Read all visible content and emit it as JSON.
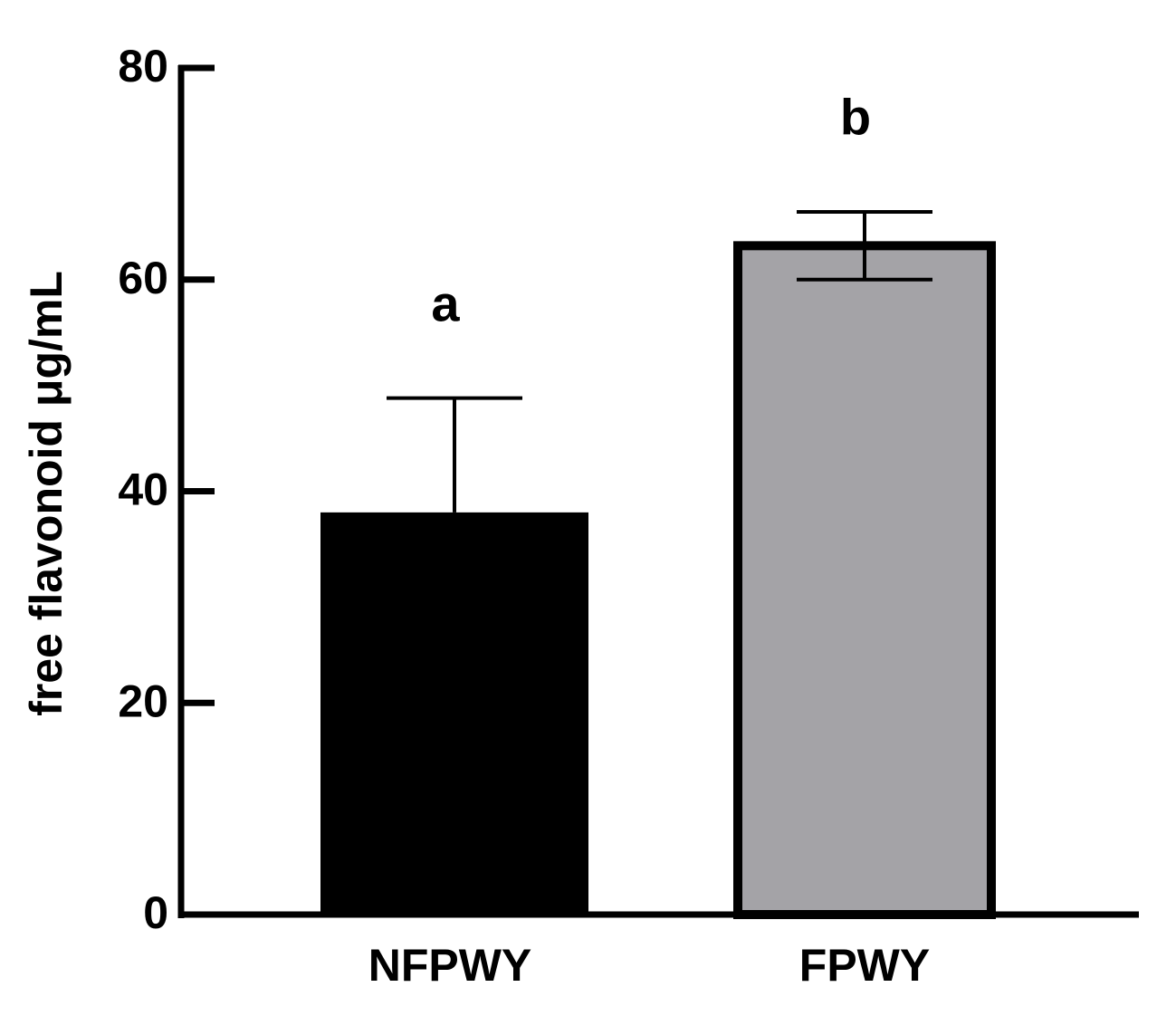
{
  "chart_data": {
    "type": "bar",
    "y_label": "free flavonoid μg/mL",
    "categories": [
      "NFPWY",
      "FPWY"
    ],
    "values": [
      38,
      63.2
    ],
    "errors": [
      10.8,
      3.2
    ],
    "annotations": [
      "a",
      "b"
    ],
    "colors": [
      "#000000",
      "#a4a3a7"
    ],
    "error_direction": [
      "up",
      "both"
    ],
    "ylim": [
      0,
      80
    ],
    "yticks": [
      0,
      20,
      40,
      60,
      80
    ],
    "grid": false
  }
}
